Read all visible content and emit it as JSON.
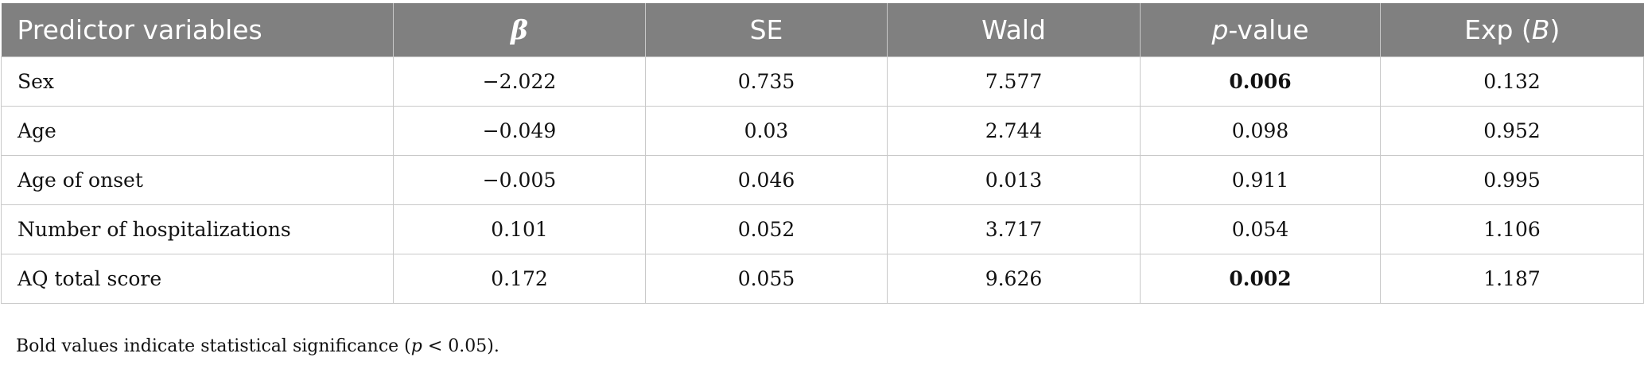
{
  "table": {
    "headers": {
      "predictor": "Predictor variables",
      "beta": "β",
      "se": "SE",
      "wald": "Wald",
      "p_italic": "p",
      "p_rest": "-value",
      "exp_prefix": "Exp (",
      "exp_italic": "B",
      "exp_suffix": ")"
    },
    "rows": [
      {
        "variable": "Sex",
        "beta": "−2.022",
        "se": "0.735",
        "wald": "7.577",
        "p": "0.006",
        "exp_b": "0.132",
        "significant": true
      },
      {
        "variable": "Age",
        "beta": "−0.049",
        "se": "0.03",
        "wald": "2.744",
        "p": "0.098",
        "exp_b": "0.952",
        "significant": false
      },
      {
        "variable": "Age of onset",
        "beta": "−0.005",
        "se": "0.046",
        "wald": "0.013",
        "p": "0.911",
        "exp_b": "0.995",
        "significant": false
      },
      {
        "variable": "Number of hospitalizations",
        "beta": "0.101",
        "se": "0.052",
        "wald": "3.717",
        "p": "0.054",
        "exp_b": "1.106",
        "significant": false
      },
      {
        "variable": "AQ total score",
        "beta": "0.172",
        "se": "0.055",
        "wald": "9.626",
        "p": "0.002",
        "exp_b": "1.187",
        "significant": true
      }
    ]
  },
  "footnote": {
    "before": "Bold values indicate statistical significance (",
    "italic": "p",
    "after": " < 0.05)."
  }
}
